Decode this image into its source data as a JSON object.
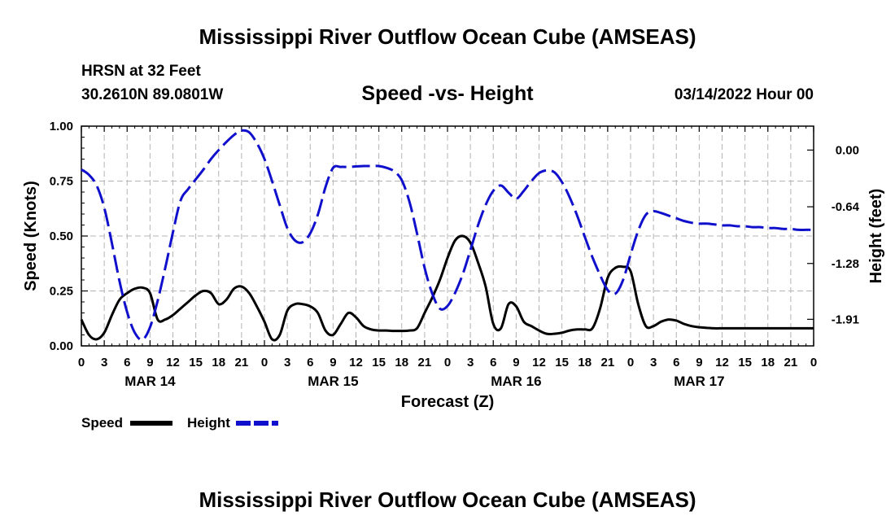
{
  "header": {
    "title": "Mississippi River Outflow Ocean Cube (AMSEAS)",
    "station": "HRSN at 32 Feet",
    "coords": "30.2610N  89.0801W",
    "subtitle": "Speed -vs- Height",
    "datetime": "03/14/2022 Hour 00"
  },
  "footer": {
    "title": "Mississippi River Outflow Ocean Cube (AMSEAS)"
  },
  "chart_data": {
    "type": "line",
    "title": "Speed -vs- Height",
    "xlabel": "Forecast (Z)",
    "ylabel": "Speed (Knots)",
    "y2label": "Height (feet)",
    "xlim": [
      0,
      96
    ],
    "ylim": [
      0,
      1
    ],
    "y2lim": [
      -2.21,
      0.27
    ],
    "x_tick_labels": [
      "0",
      "3",
      "6",
      "9",
      "12",
      "15",
      "18",
      "21",
      "0",
      "3",
      "6",
      "9",
      "12",
      "15",
      "18",
      "21",
      "0",
      "3",
      "6",
      "9",
      "12",
      "15",
      "18",
      "21",
      "0",
      "3",
      "6",
      "9",
      "12",
      "15",
      "18",
      "21",
      "0"
    ],
    "date_labels": [
      {
        "label": "MAR 14",
        "x": 9
      },
      {
        "label": "MAR 15",
        "x": 33
      },
      {
        "label": "MAR 16",
        "x": 57
      },
      {
        "label": "MAR 17",
        "x": 81
      }
    ],
    "y_ticks": [
      {
        "value": 0,
        "label": "0.00"
      },
      {
        "value": 0.25,
        "label": "0.25"
      },
      {
        "value": 0.5,
        "label": "0.50"
      },
      {
        "value": 0.75,
        "label": "0.75"
      },
      {
        "value": 1.0,
        "label": "1.00"
      }
    ],
    "y2_ticks": [
      {
        "value": 0.0,
        "label": "0.00"
      },
      {
        "value": -0.64,
        "label": "-0.64"
      },
      {
        "value": -1.28,
        "label": "-1.28"
      },
      {
        "value": -1.91,
        "label": "-1.91"
      }
    ],
    "series": [
      {
        "name": "Speed",
        "axis": "left",
        "color": "#000000",
        "dash": "solid",
        "x": [
          0,
          1,
          2,
          3,
          4,
          5,
          6,
          7,
          8,
          9,
          10,
          11,
          12,
          13,
          14,
          15,
          16,
          17,
          18,
          19,
          20,
          21,
          22,
          23,
          24,
          25,
          26,
          27,
          28,
          29,
          30,
          31,
          32,
          33,
          34,
          35,
          36,
          37,
          38,
          39,
          40,
          41,
          42,
          43,
          44,
          45,
          46,
          47,
          48,
          49,
          50,
          51,
          52,
          53,
          54,
          55,
          56,
          57,
          58,
          59,
          60,
          61,
          62,
          63,
          64,
          65,
          66,
          67,
          68,
          69,
          70,
          71,
          72,
          73,
          74,
          75,
          76,
          77,
          78,
          79,
          80,
          81,
          82,
          83,
          84,
          85,
          86,
          87,
          88,
          89,
          90,
          91,
          92,
          93,
          94,
          95,
          96
        ],
        "values": [
          0.12,
          0.05,
          0.03,
          0.06,
          0.14,
          0.21,
          0.24,
          0.26,
          0.265,
          0.24,
          0.12,
          0.12,
          0.14,
          0.17,
          0.2,
          0.23,
          0.25,
          0.24,
          0.19,
          0.21,
          0.26,
          0.27,
          0.24,
          0.18,
          0.11,
          0.03,
          0.05,
          0.16,
          0.19,
          0.19,
          0.18,
          0.15,
          0.07,
          0.05,
          0.1,
          0.15,
          0.13,
          0.09,
          0.075,
          0.07,
          0.07,
          0.068,
          0.068,
          0.07,
          0.08,
          0.15,
          0.22,
          0.3,
          0.4,
          0.48,
          0.5,
          0.47,
          0.38,
          0.27,
          0.1,
          0.08,
          0.19,
          0.18,
          0.11,
          0.09,
          0.07,
          0.055,
          0.055,
          0.06,
          0.07,
          0.075,
          0.075,
          0.08,
          0.17,
          0.31,
          0.355,
          0.36,
          0.34,
          0.19,
          0.09,
          0.09,
          0.11,
          0.12,
          0.115,
          0.1,
          0.09,
          0.085,
          0.082,
          0.08,
          0.08,
          0.08,
          0.08,
          0.08,
          0.08,
          0.08,
          0.08,
          0.08,
          0.08,
          0.08,
          0.08,
          0.08,
          0.08
        ]
      },
      {
        "name": "Height",
        "axis": "right",
        "color": "#1010cc",
        "dash": "dashed",
        "x": [
          0,
          1,
          2,
          3,
          4,
          5,
          6,
          7,
          8,
          9,
          10,
          11,
          12,
          13,
          14,
          15,
          16,
          17,
          18,
          19,
          20,
          21,
          22,
          23,
          24,
          25,
          26,
          27,
          28,
          29,
          30,
          31,
          32,
          33,
          34,
          35,
          36,
          37,
          38,
          39,
          40,
          41,
          42,
          43,
          44,
          45,
          46,
          47,
          48,
          49,
          50,
          51,
          52,
          53,
          54,
          55,
          56,
          57,
          58,
          59,
          60,
          61,
          62,
          63,
          64,
          65,
          66,
          67,
          68,
          69,
          70,
          71,
          72,
          73,
          74,
          75,
          76,
          77,
          78,
          79,
          80,
          81,
          82,
          83,
          84,
          85,
          86,
          87,
          88,
          89,
          90,
          91,
          92,
          93,
          94,
          95,
          96
        ],
        "values": [
          -0.22,
          -0.28,
          -0.4,
          -0.65,
          -1.05,
          -1.48,
          -1.83,
          -2.06,
          -2.14,
          -2.0,
          -1.7,
          -1.33,
          -0.93,
          -0.57,
          -0.44,
          -0.33,
          -0.22,
          -0.1,
          0.0,
          0.09,
          0.17,
          0.22,
          0.2,
          0.08,
          -0.1,
          -0.35,
          -0.62,
          -0.88,
          -1.02,
          -1.04,
          -0.94,
          -0.73,
          -0.42,
          -0.2,
          -0.19,
          -0.19,
          -0.185,
          -0.18,
          -0.18,
          -0.18,
          -0.2,
          -0.24,
          -0.34,
          -0.58,
          -0.94,
          -1.33,
          -1.62,
          -1.79,
          -1.76,
          -1.61,
          -1.4,
          -1.13,
          -0.85,
          -0.62,
          -0.46,
          -0.4,
          -0.48,
          -0.55,
          -0.46,
          -0.35,
          -0.26,
          -0.23,
          -0.25,
          -0.36,
          -0.53,
          -0.74,
          -0.98,
          -1.21,
          -1.41,
          -1.58,
          -1.62,
          -1.47,
          -1.18,
          -0.91,
          -0.73,
          -0.69,
          -0.71,
          -0.74,
          -0.77,
          -0.8,
          -0.82,
          -0.83,
          -0.83,
          -0.84,
          -0.85,
          -0.85,
          -0.86,
          -0.86,
          -0.87,
          -0.87,
          -0.88,
          -0.88,
          -0.89,
          -0.89,
          -0.9,
          -0.9,
          -0.9
        ]
      }
    ],
    "legend": [
      {
        "label": "Speed",
        "color": "#000000",
        "dash": "solid"
      },
      {
        "label": "Height",
        "color": "#1010cc",
        "dash": "dashed"
      }
    ]
  }
}
